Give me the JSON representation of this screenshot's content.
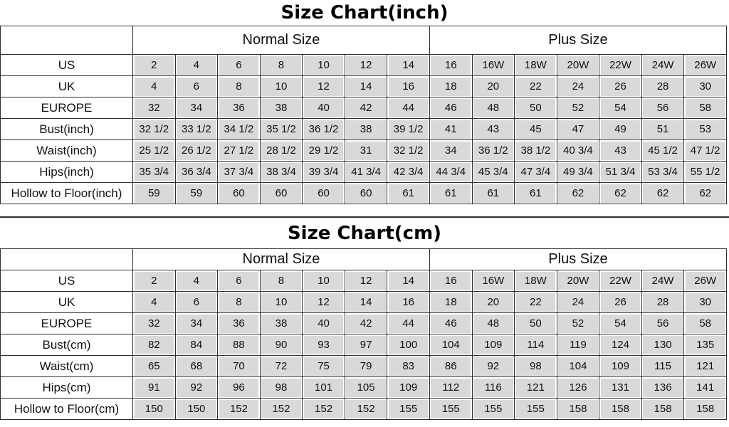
{
  "chart_data": [
    {
      "type": "table",
      "title": "Size Chart(inch)",
      "group_headers": [
        "Normal Size",
        "Plus Size"
      ],
      "columns_per_group": [
        7,
        7
      ],
      "rows": [
        {
          "label": "US",
          "values": [
            "2",
            "4",
            "6",
            "8",
            "10",
            "12",
            "14",
            "16",
            "16W",
            "18W",
            "20W",
            "22W",
            "24W",
            "26W"
          ]
        },
        {
          "label": "UK",
          "values": [
            "4",
            "6",
            "8",
            "10",
            "12",
            "14",
            "16",
            "18",
            "20",
            "22",
            "24",
            "26",
            "28",
            "30"
          ]
        },
        {
          "label": "EUROPE",
          "values": [
            "32",
            "34",
            "36",
            "38",
            "40",
            "42",
            "44",
            "46",
            "48",
            "50",
            "52",
            "54",
            "56",
            "58"
          ]
        },
        {
          "label": "Bust(inch)",
          "values": [
            "32 1/2",
            "33 1/2",
            "34 1/2",
            "35 1/2",
            "36 1/2",
            "38",
            "39 1/2",
            "41",
            "43",
            "45",
            "47",
            "49",
            "51",
            "53"
          ]
        },
        {
          "label": "Waist(inch)",
          "values": [
            "25 1/2",
            "26 1/2",
            "27 1/2",
            "28 1/2",
            "29 1/2",
            "31",
            "32 1/2",
            "34",
            "36 1/2",
            "38 1/2",
            "40 3/4",
            "43",
            "45 1/2",
            "47 1/2"
          ]
        },
        {
          "label": "Hips(inch)",
          "values": [
            "35 3/4",
            "36 3/4",
            "37 3/4",
            "38 3/4",
            "39 3/4",
            "41 3/4",
            "42 3/4",
            "44 3/4",
            "45 3/4",
            "47 3/4",
            "49 3/4",
            "51 3/4",
            "53 3/4",
            "55 1/2"
          ]
        },
        {
          "label": "Hollow to Floor(inch)",
          "values": [
            "59",
            "59",
            "60",
            "60",
            "60",
            "60",
            "61",
            "61",
            "61",
            "61",
            "62",
            "62",
            "62",
            "62"
          ]
        }
      ]
    },
    {
      "type": "table",
      "title": "Size Chart(cm)",
      "group_headers": [
        "Normal Size",
        "Plus Size"
      ],
      "columns_per_group": [
        7,
        7
      ],
      "rows": [
        {
          "label": "US",
          "values": [
            "2",
            "4",
            "6",
            "8",
            "10",
            "12",
            "14",
            "16",
            "16W",
            "18W",
            "20W",
            "22W",
            "24W",
            "26W"
          ]
        },
        {
          "label": "UK",
          "values": [
            "4",
            "6",
            "8",
            "10",
            "12",
            "14",
            "16",
            "18",
            "20",
            "22",
            "24",
            "26",
            "28",
            "30"
          ]
        },
        {
          "label": "EUROPE",
          "values": [
            "32",
            "34",
            "36",
            "38",
            "40",
            "42",
            "44",
            "46",
            "48",
            "50",
            "52",
            "54",
            "56",
            "58"
          ]
        },
        {
          "label": "Bust(cm)",
          "values": [
            "82",
            "84",
            "88",
            "90",
            "93",
            "97",
            "100",
            "104",
            "109",
            "114",
            "119",
            "124",
            "130",
            "135"
          ]
        },
        {
          "label": "Waist(cm)",
          "values": [
            "65",
            "68",
            "70",
            "72",
            "75",
            "79",
            "83",
            "86",
            "92",
            "98",
            "104",
            "109",
            "115",
            "121"
          ]
        },
        {
          "label": "Hips(cm)",
          "values": [
            "91",
            "92",
            "96",
            "98",
            "101",
            "105",
            "109",
            "112",
            "116",
            "121",
            "126",
            "131",
            "136",
            "141"
          ]
        },
        {
          "label": "Hollow to Floor(cm)",
          "values": [
            "150",
            "150",
            "152",
            "152",
            "152",
            "152",
            "155",
            "155",
            "155",
            "155",
            "158",
            "158",
            "158",
            "158"
          ]
        }
      ]
    }
  ],
  "colors": {
    "cell_fill": "#d9d9d9",
    "grid_line": "#2f2f2f",
    "background": "#ffffff",
    "text": "#000000"
  }
}
